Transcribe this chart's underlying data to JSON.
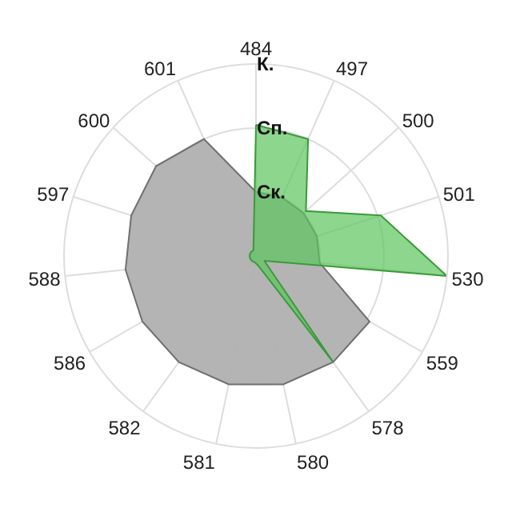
{
  "chart_data": {
    "type": "radar",
    "categories": [
      "484",
      "497",
      "500",
      "501",
      "530",
      "559",
      "578",
      "580",
      "581",
      "582",
      "586",
      "588",
      "597",
      "600",
      "601"
    ],
    "series": [
      {
        "color": "#707070",
        "values": [
          1,
          1,
          1,
          1,
          1,
          2.05,
          2.05,
          2.05,
          2.05,
          2.05,
          2.05,
          2.05,
          2.05,
          2.1,
          2
        ]
      },
      {
        "color": "#3a9a3a",
        "values": [
          2.05,
          2,
          1.05,
          2.05,
          3,
          0.15,
          2.05,
          0.15,
          0.1,
          0.1,
          0.1,
          0.1,
          0.1,
          0.1,
          0.1
        ]
      }
    ],
    "ylim": [
      0,
      3
    ],
    "yticks": [
      {
        "value": 1,
        "label": "Ск."
      },
      {
        "value": 2,
        "label": "Сп."
      },
      {
        "value": 3,
        "label": "К."
      }
    ],
    "grid": true,
    "marker": "none"
  }
}
